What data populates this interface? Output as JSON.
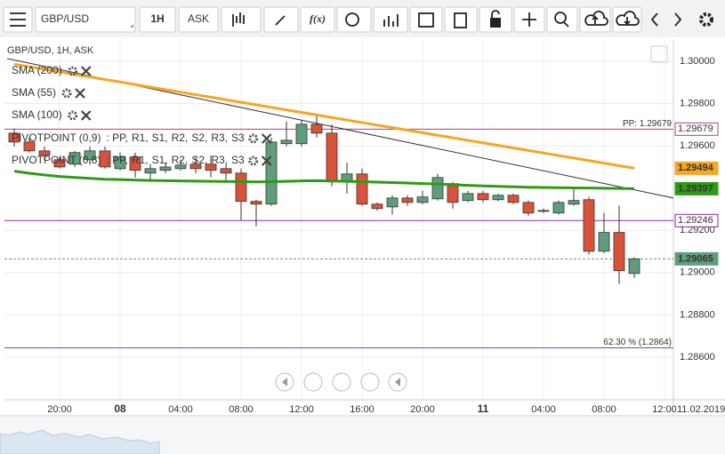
{
  "toolbar": {
    "symbol": "GBP/USD",
    "interval": "1H",
    "price_type": "ASK",
    "fx": "f(x)"
  },
  "chart_data": {
    "type": "candlestick",
    "title": "GBP/USD, 1H, ASK",
    "categories": [
      null,
      null,
      null,
      "20:00",
      null,
      null,
      null,
      "08",
      null,
      null,
      null,
      "04:00",
      null,
      null,
      null,
      "08:00",
      null,
      null,
      null,
      "12:00",
      null,
      null,
      null,
      "16:00",
      null,
      null,
      null,
      "20:00",
      null,
      null,
      null,
      "11",
      null,
      null,
      null,
      "04:00",
      null,
      null,
      null,
      "08:00",
      null,
      null,
      null,
      "12:00"
    ],
    "date_label": "11.02.2019",
    "open": [
      1.2966,
      1.29618,
      1.29576,
      1.29534,
      1.29513,
      1.29534,
      1.29576,
      1.29492,
      1.29547,
      1.29471,
      1.29484,
      1.29492,
      1.29513,
      1.29513,
      1.29492,
      1.29471,
      1.29337,
      1.29324,
      1.2961,
      1.2961,
      1.29702,
      1.2966,
      1.29429,
      1.29467,
      1.29324,
      1.29311,
      1.29353,
      1.29332,
      1.29349,
      1.29421,
      1.29341,
      1.29374,
      1.29345,
      1.29366,
      1.29332,
      1.29294,
      1.29282,
      1.29324,
      1.29345,
      1.29101,
      1.2919,
      1.28996,
      null,
      null
    ],
    "high": [
      1.29681,
      1.29639,
      1.29597,
      1.29547,
      1.29576,
      1.29597,
      1.29597,
      1.29568,
      1.29568,
      1.29513,
      1.29521,
      1.29534,
      1.29547,
      1.29555,
      1.29513,
      1.29492,
      1.29345,
      1.29639,
      1.29715,
      1.29723,
      1.29752,
      1.29702,
      1.29521,
      1.29492,
      1.29332,
      1.29366,
      1.29366,
      1.29387,
      1.29467,
      1.29429,
      1.29387,
      1.29387,
      1.29374,
      1.29374,
      1.29341,
      1.29303,
      1.29341,
      1.29395,
      1.29358,
      1.29282,
      1.29316,
      1.29072,
      null,
      null
    ],
    "low": [
      1.29597,
      1.29568,
      1.29534,
      1.29492,
      1.295,
      1.29513,
      1.29492,
      1.29484,
      1.2945,
      1.29437,
      1.29471,
      1.29484,
      1.29471,
      1.2945,
      1.29437,
      1.29248,
      1.29219,
      1.29316,
      1.29597,
      1.29597,
      1.29639,
      1.29408,
      1.29374,
      1.29316,
      1.29294,
      1.29274,
      1.29316,
      1.29324,
      1.29341,
      1.29303,
      1.29332,
      1.29332,
      1.29337,
      1.29324,
      1.29269,
      1.29282,
      1.29274,
      1.29316,
      1.29085,
      1.29093,
      1.28946,
      1.28975,
      null,
      null
    ],
    "close": [
      1.29618,
      1.29576,
      1.29555,
      1.295,
      1.29568,
      1.29576,
      1.295,
      1.29547,
      1.29484,
      1.29492,
      1.295,
      1.29509,
      1.29492,
      1.29484,
      1.29471,
      1.29337,
      1.29324,
      1.29618,
      1.29626,
      1.29702,
      1.2966,
      1.29429,
      1.29467,
      1.29324,
      1.29303,
      1.29353,
      1.29332,
      1.29358,
      1.2945,
      1.29332,
      1.29374,
      1.29345,
      1.29366,
      1.29332,
      1.29282,
      1.29294,
      1.29332,
      1.29341,
      1.29101,
      1.2919,
      1.29009,
      1.29065,
      null,
      null
    ],
    "up_color": "#5f9e7c",
    "down_color": "#d9533b",
    "series": [
      {
        "name": "SMA (200)",
        "color": "#a83232",
        "values": [
          null,
          null,
          null,
          null,
          null,
          null,
          null,
          null,
          null,
          null,
          null,
          null,
          null,
          null,
          null,
          null,
          null,
          null,
          null,
          null,
          null,
          null,
          null,
          null,
          null,
          null,
          null,
          null,
          null,
          null,
          null,
          null,
          null,
          null,
          null,
          null,
          null,
          null,
          null,
          null,
          null,
          null,
          null,
          null
        ]
      },
      {
        "name": "SMA (55)",
        "color": "#2f9a15",
        "values": [
          1.2948,
          1.2947,
          1.29462,
          1.29455,
          1.2945,
          1.29446,
          1.29442,
          1.2944,
          1.29438,
          1.29436,
          1.29435,
          1.29434,
          1.29433,
          1.29432,
          1.29431,
          1.2943,
          1.29429,
          1.2943,
          1.29432,
          1.29434,
          1.29435,
          1.29434,
          1.29432,
          1.2943,
          1.29428,
          1.29426,
          1.29424,
          1.29421,
          1.29419,
          1.29416,
          1.29413,
          1.2941,
          1.29408,
          1.29406,
          1.29404,
          1.29403,
          1.29402,
          1.29401,
          1.294,
          1.29399,
          1.29398,
          1.29397,
          null,
          null
        ]
      },
      {
        "name": "SMA (100)",
        "color": "#f5a623",
        "values": [
          1.29986,
          1.29974,
          1.29962,
          1.2995,
          1.29938,
          1.29926,
          1.29914,
          1.29902,
          1.2989,
          1.29878,
          1.29866,
          1.29854,
          1.29842,
          1.2983,
          1.29818,
          1.29806,
          1.29794,
          1.29782,
          1.2977,
          1.29758,
          1.29746,
          1.29734,
          1.29722,
          1.2971,
          1.29698,
          1.29686,
          1.29674,
          1.29662,
          1.2965,
          1.29638,
          1.29626,
          1.29614,
          1.29602,
          1.2959,
          1.29578,
          1.29566,
          1.29554,
          1.29542,
          1.2953,
          1.29518,
          1.29506,
          1.29494,
          null,
          null
        ]
      }
    ],
    "pivots": [
      {
        "name": "PIVOTPOINT (0,9)",
        "items": [
          {
            "text": ": PP,",
            "color": "#9b30b0"
          },
          {
            "text": "R1,",
            "color": "#9b30b0"
          },
          {
            "text": "S1,",
            "color": "#9b30b0"
          },
          {
            "text": "R2,",
            "color": "#5a4fc0"
          },
          {
            "text": "S2,",
            "color": "#9b30b0"
          },
          {
            "text": "R3,",
            "color": "#9b30b0"
          },
          {
            "text": "S3",
            "color": "#3a7fb0"
          }
        ]
      },
      {
        "name": "PIVOTPOINT (0,8)",
        "items": [
          {
            "text": ": PP,",
            "color": "#9b30b0"
          },
          {
            "text": "R1,",
            "color": "#9b30b0"
          },
          {
            "text": "S1,",
            "color": "#3f9a3f"
          },
          {
            "text": "R2,",
            "color": "#3a6fb0"
          },
          {
            "text": "S2,",
            "color": "#9b30b0"
          },
          {
            "text": "R3,",
            "color": "#a0522d"
          },
          {
            "text": "S3",
            "color": "#9b30b0"
          }
        ]
      }
    ],
    "trendline": {
      "values": [
        1.30013,
        1.29353
      ],
      "color": "#333333"
    },
    "levels": [
      {
        "label": "PP: 1.29679",
        "value": 1.29679,
        "color": "#b0408a"
      },
      {
        "value": 1.29246,
        "color": "#8a2aa0"
      },
      {
        "label": "62.30 % (1.2864)",
        "value": 1.28644,
        "color": "#5a55c0"
      }
    ],
    "current_price": {
      "value": 1.29065,
      "color": "#5f9e7c"
    },
    "price_tags": [
      {
        "value": 1.29679,
        "color": "#b0408a",
        "filled": false
      },
      {
        "value": 1.29494,
        "color": "#f5a623",
        "filled": true
      },
      {
        "value": 1.29397,
        "color": "#2f9a15",
        "filled": true
      },
      {
        "value": 1.29246,
        "color": "#8a2aa0",
        "filled": false
      },
      {
        "value": 1.29065,
        "color": "#5f9e7c",
        "filled": true
      }
    ],
    "ylim": [
      1.28398,
      1.30105
    ],
    "yticks": [
      {
        "value": 1.3,
        "label": "1.30000"
      },
      {
        "value": 1.298,
        "label": "1.29800"
      },
      {
        "value": 1.296,
        "label": "1.29600"
      },
      {
        "value": 1.292,
        "label": "1.29200"
      },
      {
        "value": 1.29,
        "label": "1.29000"
      },
      {
        "value": 1.288,
        "label": "1.28800"
      },
      {
        "value": 1.286,
        "label": "1.28600"
      }
    ],
    "grid": true
  }
}
